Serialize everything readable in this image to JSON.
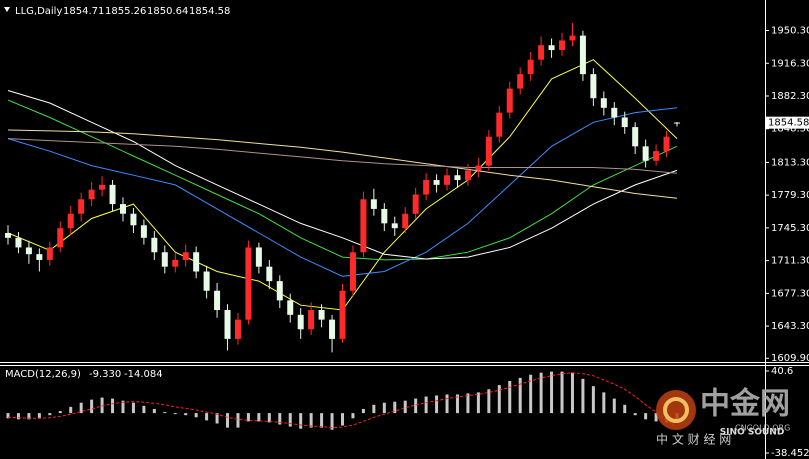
{
  "chart_data": {
    "type": "candlestick",
    "symbol": "LLG,Daily",
    "open": [
      1740,
      1735,
      1725,
      1718,
      1712,
      1725,
      1745,
      1760,
      1775,
      1785,
      1790,
      1770,
      1760,
      1748,
      1735,
      1720,
      1705,
      1712,
      1720,
      1700,
      1680,
      1660,
      1630,
      1650,
      1725,
      1705,
      1690,
      1670,
      1655,
      1640,
      1660,
      1650,
      1630,
      1680,
      1720,
      1775,
      1765,
      1750,
      1745,
      1760,
      1780,
      1795,
      1790,
      1800,
      1795,
      1805,
      1810,
      1840,
      1865,
      1890,
      1905,
      1920,
      1935,
      1930,
      1940,
      1945,
      1905,
      1880,
      1870,
      1860,
      1850,
      1830,
      1815,
      1825,
      1854.71
    ],
    "high": [
      1748,
      1741,
      1732,
      1724,
      1731,
      1752,
      1768,
      1782,
      1793,
      1799,
      1795,
      1777,
      1766,
      1754,
      1742,
      1727,
      1719,
      1728,
      1726,
      1706,
      1688,
      1666,
      1657,
      1732,
      1730,
      1712,
      1696,
      1677,
      1662,
      1668,
      1666,
      1655,
      1687,
      1727,
      1783,
      1786,
      1771,
      1757,
      1767,
      1787,
      1802,
      1801,
      1807,
      1806,
      1812,
      1818,
      1847,
      1872,
      1897,
      1912,
      1928,
      1944,
      1942,
      1948,
      1958,
      1950,
      1911,
      1887,
      1876,
      1866,
      1855,
      1837,
      1832,
      1846,
      1855.26
    ],
    "low": [
      1728,
      1719,
      1708,
      1700,
      1706,
      1720,
      1738,
      1752,
      1768,
      1778,
      1763,
      1752,
      1740,
      1728,
      1712,
      1698,
      1699,
      1705,
      1693,
      1672,
      1652,
      1618,
      1624,
      1645,
      1698,
      1682,
      1662,
      1647,
      1630,
      1634,
      1642,
      1616,
      1626,
      1674,
      1715,
      1758,
      1742,
      1737,
      1740,
      1755,
      1774,
      1782,
      1784,
      1787,
      1789,
      1798,
      1805,
      1834,
      1859,
      1884,
      1898,
      1914,
      1922,
      1924,
      1934,
      1898,
      1872,
      1862,
      1852,
      1843,
      1822,
      1808,
      1810,
      1819,
      1850.64
    ],
    "close": [
      1735,
      1725,
      1718,
      1712,
      1725,
      1745,
      1760,
      1775,
      1785,
      1790,
      1770,
      1760,
      1748,
      1735,
      1720,
      1705,
      1712,
      1720,
      1700,
      1680,
      1660,
      1630,
      1650,
      1725,
      1705,
      1690,
      1670,
      1655,
      1640,
      1660,
      1650,
      1630,
      1680,
      1720,
      1775,
      1765,
      1750,
      1745,
      1760,
      1780,
      1795,
      1790,
      1800,
      1795,
      1805,
      1810,
      1840,
      1865,
      1890,
      1905,
      1920,
      1935,
      1930,
      1940,
      1945,
      1905,
      1880,
      1870,
      1860,
      1850,
      1830,
      1815,
      1825,
      1840,
      1854.58
    ],
    "up_color": "#ff2a2a",
    "down_color": "#e6fae6",
    "ylim": [
      1606,
      1982
    ],
    "yticks": [
      {
        "value": 1950.3,
        "label": "1950.30"
      },
      {
        "value": 1916.3,
        "label": "1916.30"
      },
      {
        "value": 1882.3,
        "label": "1882.30"
      },
      {
        "value": 1848.3,
        "label": "1848.30"
      },
      {
        "value": 1813.3,
        "label": "1813.30"
      },
      {
        "value": 1779.3,
        "label": "1779.30"
      },
      {
        "value": 1745.3,
        "label": "1745.30"
      },
      {
        "value": 1711.3,
        "label": "1711.30"
      },
      {
        "value": 1677.3,
        "label": "1677.30"
      },
      {
        "value": 1643.3,
        "label": "1643.30"
      },
      {
        "value": 1609.9,
        "label": "1609.90"
      }
    ],
    "moving_averages": {
      "x": [
        0,
        4,
        8,
        12,
        16,
        20,
        24,
        28,
        32,
        36,
        40,
        44,
        48,
        52,
        56,
        60,
        64
      ],
      "series": [
        {
          "color": "#ffff40",
          "values": [
            1740,
            1722,
            1755,
            1770,
            1720,
            1700,
            1690,
            1665,
            1660,
            1720,
            1765,
            1795,
            1840,
            1900,
            1920,
            1880,
            1838
          ]
        },
        {
          "color": "#40e040",
          "values": [
            1878,
            1860,
            1840,
            1820,
            1800,
            1780,
            1760,
            1735,
            1715,
            1712,
            1713,
            1720,
            1735,
            1760,
            1790,
            1810,
            1830
          ]
        },
        {
          "color": "#3c8cff",
          "values": [
            1838,
            1825,
            1810,
            1800,
            1790,
            1765,
            1740,
            1715,
            1695,
            1700,
            1720,
            1750,
            1790,
            1830,
            1855,
            1865,
            1870
          ]
        },
        {
          "color": "#ffffff",
          "values": [
            1888,
            1875,
            1855,
            1835,
            1810,
            1790,
            1770,
            1750,
            1735,
            1718,
            1713,
            1715,
            1725,
            1745,
            1770,
            1790,
            1805
          ]
        },
        {
          "color": "#f0e0a0",
          "values": [
            1847,
            1846,
            1845,
            1843,
            1840,
            1837,
            1833,
            1829,
            1824,
            1818,
            1812,
            1806,
            1800,
            1795,
            1788,
            1781,
            1776
          ]
        },
        {
          "color": "#b09090",
          "values": [
            1838,
            1836,
            1834,
            1832,
            1830,
            1827,
            1823,
            1819,
            1815,
            1812,
            1810,
            1808,
            1808,
            1808,
            1808,
            1806,
            1802
          ]
        }
      ]
    },
    "macd": {
      "title": "MACD(12,26,9)",
      "histogram": [
        -5,
        -6,
        -6,
        -5,
        -2,
        2,
        6,
        10,
        13,
        15,
        14,
        12,
        10,
        7,
        4,
        1,
        -1,
        -2,
        -4,
        -7,
        -10,
        -14,
        -14,
        -8,
        -8,
        -9,
        -11,
        -13,
        -15,
        -14,
        -14,
        -16,
        -12,
        -5,
        4,
        8,
        10,
        11,
        12,
        14,
        16,
        17,
        18,
        18,
        19,
        20,
        23,
        27,
        31,
        34,
        37,
        39,
        40,
        40,
        39,
        33,
        26,
        20,
        14,
        8,
        -2,
        -6,
        -8,
        -9,
        -9.33
      ],
      "histogram_label": "-9.330",
      "histogram_color": "#c8c8c8",
      "signal": [
        -4,
        -4.5,
        -5,
        -5,
        -4.5,
        -3,
        -1,
        1.5,
        4,
        7,
        9,
        10.5,
        11,
        10.5,
        9.5,
        8,
        6,
        4.5,
        3,
        1,
        -1,
        -4,
        -6,
        -7,
        -7.5,
        -8,
        -9,
        -10,
        -11.5,
        -12.5,
        -13,
        -14,
        -13.5,
        -11.5,
        -8,
        -4,
        -1,
        2,
        5,
        8,
        10,
        12,
        14,
        15.5,
        17,
        18,
        20,
        22,
        25,
        28,
        31,
        34,
        36,
        38,
        39,
        38,
        36,
        32,
        28,
        23,
        16,
        8,
        1,
        -7,
        -14.084
      ],
      "signal_color": "#ff2020",
      "ylim": [
        -38.452,
        40.6
      ],
      "yticks": [
        40.6,
        -38.452
      ]
    },
    "watermark": {
      "name": "中金网",
      "site": "CNGOLD.ORG",
      "brand": "SINO SOUND",
      "tagline": "中 文 财 经 网"
    }
  }
}
